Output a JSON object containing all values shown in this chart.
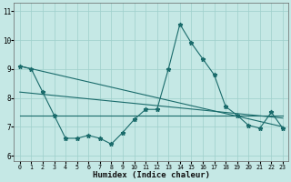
{
  "xlabel": "Humidex (Indice chaleur)",
  "background_color": "#c5e8e5",
  "grid_color": "#9ecfcb",
  "line_color": "#1a6b6b",
  "xlim": [
    -0.5,
    23.5
  ],
  "ylim": [
    5.8,
    11.3
  ],
  "xticks": [
    0,
    1,
    2,
    3,
    4,
    5,
    6,
    7,
    8,
    9,
    10,
    11,
    12,
    13,
    14,
    15,
    16,
    17,
    18,
    19,
    20,
    21,
    22,
    23
  ],
  "yticks": [
    6,
    7,
    8,
    9,
    10,
    11
  ],
  "line1_x": [
    0,
    1,
    2,
    3,
    4,
    5,
    6,
    7,
    8,
    9,
    10,
    11,
    12,
    13,
    14,
    15,
    16,
    17,
    18,
    19,
    20,
    21,
    22,
    23
  ],
  "line1_y": [
    9.1,
    9.0,
    8.2,
    7.4,
    6.6,
    6.6,
    6.7,
    6.6,
    6.4,
    6.8,
    7.25,
    7.6,
    7.6,
    9.0,
    10.55,
    9.9,
    9.35,
    8.8,
    7.7,
    7.4,
    7.05,
    6.95,
    7.5,
    6.95
  ],
  "line2_x": [
    0,
    23
  ],
  "line2_y": [
    9.1,
    7.0
  ],
  "line3_x": [
    0,
    23
  ],
  "line3_y": [
    8.2,
    7.3
  ],
  "line4_x": [
    0,
    3,
    10,
    19,
    23
  ],
  "line4_y": [
    7.4,
    7.4,
    7.4,
    7.4,
    7.4
  ]
}
